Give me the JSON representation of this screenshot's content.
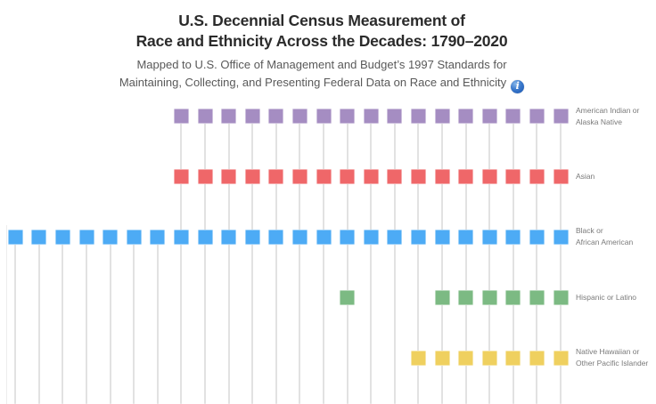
{
  "header": {
    "title_lines": [
      "U.S. Decennial Census Measurement of",
      "Race and Ethnicity Across the Decades: 1790–2020"
    ],
    "subtitle_lines": [
      "Mapped to U.S. Office of Management and Budget’s 1997 Standards for",
      "Maintaining, Collecting, and Presenting Federal Data on Race and Ethnicity"
    ],
    "info_icon_glyph": "i"
  },
  "colors": {
    "title": "#2b2b2b",
    "subtitle": "#595959",
    "row_label": "#7a7a7a",
    "gridline": "#e2e2e2",
    "info_icon": "#2a66c0"
  },
  "chart_data": {
    "type": "scatter",
    "title": "U.S. Decennial Census Measurement of Race and Ethnicity Across the Decades: 1790–2020",
    "subtitle": "Mapped to U.S. Office of Management and Budget’s 1997 Standards for Maintaining, Collecting, and Presenting Federal Data on Race and Ethnicity",
    "description": "Square mark = category measured in that decennial census; each decade column has a vertical dropline; category labels on the right",
    "x_axis": {
      "label": "Census decade",
      "min": 1790,
      "max": 2020,
      "step": 10,
      "tick_labels_visible": false
    },
    "grid": "vertical droplines, one per decade, from first mark down to bottom edge",
    "legend_position": "right row labels",
    "decades": [
      1790,
      1800,
      1810,
      1820,
      1830,
      1840,
      1850,
      1860,
      1870,
      1880,
      1890,
      1900,
      1910,
      1920,
      1930,
      1940,
      1950,
      1960,
      1970,
      1980,
      1990,
      2000,
      2010,
      2020
    ],
    "series": [
      {
        "name": "American Indian or Alaska Native",
        "label_lines": [
          "American Indian or",
          "Alaska Native"
        ],
        "color": "#a58dc2",
        "decades_measured": [
          1860,
          1870,
          1880,
          1890,
          1900,
          1910,
          1920,
          1930,
          1940,
          1950,
          1960,
          1970,
          1980,
          1990,
          2000,
          2010,
          2020
        ]
      },
      {
        "name": "Asian",
        "label_lines": [
          "Asian"
        ],
        "color": "#ef6769",
        "decades_measured": [
          1860,
          1870,
          1880,
          1890,
          1900,
          1910,
          1920,
          1930,
          1940,
          1950,
          1960,
          1970,
          1980,
          1990,
          2000,
          2010,
          2020
        ]
      },
      {
        "name": "Black or African American",
        "label_lines": [
          "Black or",
          "African American"
        ],
        "color": "#4dabf5",
        "decades_measured": [
          1790,
          1800,
          1810,
          1820,
          1830,
          1840,
          1850,
          1860,
          1870,
          1880,
          1890,
          1900,
          1910,
          1920,
          1930,
          1940,
          1950,
          1960,
          1970,
          1980,
          1990,
          2000,
          2010,
          2020
        ]
      },
      {
        "name": "Hispanic or Latino",
        "label_lines": [
          "Hispanic or Latino"
        ],
        "color": "#7cba83",
        "decades_measured": [
          1930,
          1970,
          1980,
          1990,
          2000,
          2010,
          2020
        ]
      },
      {
        "name": "Native Hawaiian or Other Pacific Islander",
        "label_lines": [
          "Native Hawaiian or",
          "Other Pacific Islander"
        ],
        "color": "#efd05f",
        "decades_measured": [
          1960,
          1970,
          1980,
          1990,
          2000,
          2010,
          2020
        ]
      }
    ]
  }
}
